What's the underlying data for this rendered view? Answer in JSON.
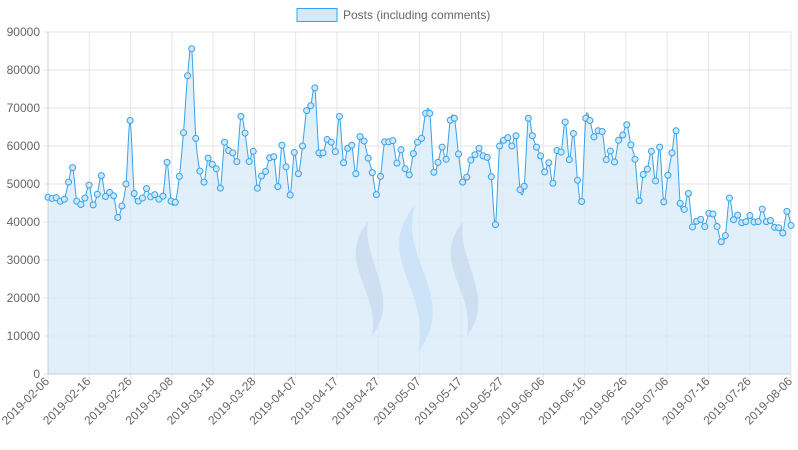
{
  "chart_data": {
    "type": "area",
    "legend": {
      "label": "Posts (including comments)",
      "position": "top-center"
    },
    "colors": {
      "line": "#36a2eb",
      "fill": "#d6e9f8",
      "grid": "#e6e6e6",
      "axis": "#cccccc",
      "text": "#666666",
      "watermark_light": "#a9cdf7",
      "watermark_dark": "#a8b5cf"
    },
    "ylim": [
      0,
      90000
    ],
    "yticks": [
      "0",
      "10000",
      "20000",
      "30000",
      "40000",
      "50000",
      "60000",
      "70000",
      "80000",
      "90000"
    ],
    "xticks": [
      "2019-02-06",
      "2019-02-16",
      "2019-02-26",
      "2019-03-08",
      "2019-03-18",
      "2019-03-28",
      "2019-04-07",
      "2019-04-17",
      "2019-04-27",
      "2019-05-07",
      "2019-05-17",
      "2019-05-27",
      "2019-06-06",
      "2019-06-16",
      "2019-06-26",
      "2019-07-06",
      "2019-07-16",
      "2019-07-26",
      "2019-08-06"
    ],
    "grid": true,
    "watermark": "steem-logo",
    "series": [
      {
        "name": "Posts (including comments)",
        "values": [
          46500,
          46200,
          46400,
          45500,
          46000,
          50500,
          54300,
          45500,
          44600,
          46300,
          49700,
          44500,
          47300,
          52200,
          46700,
          47800,
          46900,
          41200,
          44200,
          50000,
          66700,
          47500,
          45500,
          46300,
          48800,
          46600,
          47200,
          46000,
          46800,
          55700,
          45500,
          45200,
          52000,
          63500,
          78500,
          85600,
          62000,
          53400,
          50500,
          56800,
          55200,
          54000,
          48900,
          61000,
          58800,
          58200,
          55900,
          67800,
          63400,
          55900,
          58600,
          48900,
          52100,
          53300,
          56900,
          57200,
          49300,
          60200,
          54500,
          47100,
          58300,
          52700,
          60000,
          69300,
          70600,
          75300,
          58200,
          58200,
          61700,
          61000,
          58500,
          67800,
          55600,
          59400,
          60200,
          52700,
          62500,
          61300,
          56800,
          53000,
          47200,
          52000,
          61100,
          61100,
          61400,
          55500,
          59000,
          54000,
          52400,
          58000,
          61000,
          62000,
          68600,
          68600,
          53100,
          55700,
          59700,
          56500,
          66800,
          67300,
          57900,
          50500,
          51800,
          56300,
          57700,
          59400,
          57400,
          57000,
          51900,
          39300,
          60000,
          61500,
          62200,
          60000,
          62700,
          48500,
          49400,
          67300,
          62700,
          59700,
          57400,
          53200,
          55600,
          50200,
          58800,
          58400,
          66300,
          56400,
          63300,
          51000,
          45400,
          67300,
          66700,
          62400,
          64000,
          63800,
          56400,
          58700,
          55800,
          61500,
          62900,
          65600,
          60300,
          56500,
          45600,
          52500,
          53900,
          58600,
          50800,
          59700,
          45300,
          52300,
          58200,
          64000,
          44900,
          43300,
          47500,
          38700,
          40200,
          40700,
          38800,
          42300,
          42100,
          38800,
          34800,
          36400,
          46300,
          40600,
          41800,
          39800,
          40100,
          41700,
          40000,
          40100,
          43400,
          40100,
          40400,
          38600,
          38500,
          37100,
          42800,
          39100
        ]
      }
    ]
  }
}
